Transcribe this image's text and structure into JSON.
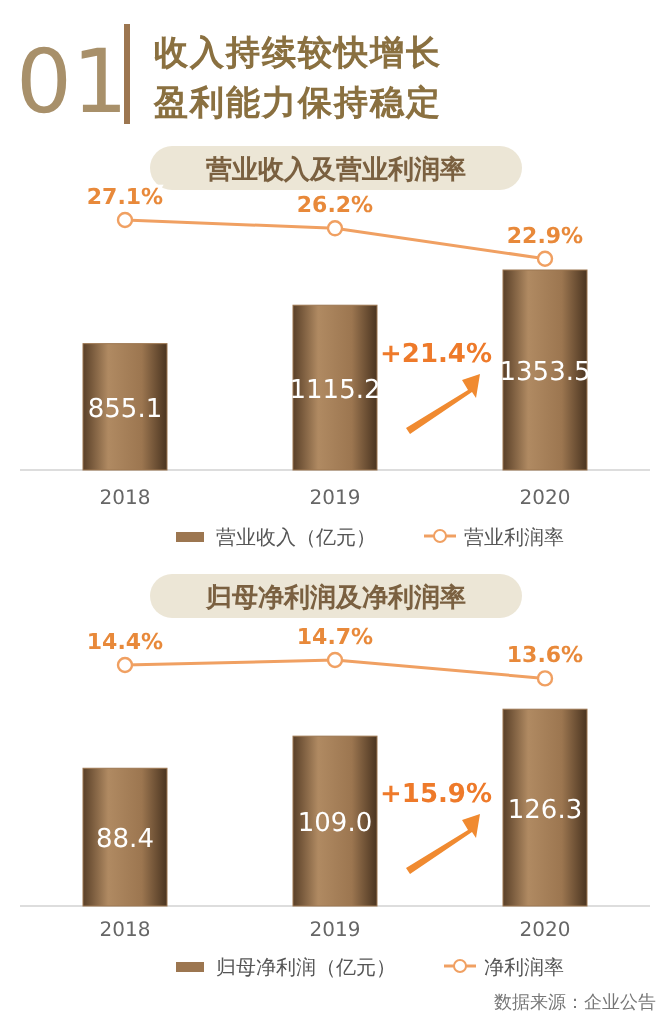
{
  "chart_data": [
    {
      "type": "bar",
      "categories": [
        "2018",
        "2019",
        "2020"
      ],
      "series": [
        {
          "name": "营业收入（亿元）",
          "color": "#9c7650",
          "values": [
            855.1,
            1115.2,
            1353.5
          ],
          "value_labels": [
            "855.1",
            "1115.2",
            "1353.5"
          ]
        }
      ],
      "tick_labels": "x",
      "legend": "bottom",
      "grid": false,
      "annotations": [
        "01",
        "收入持续较快增长",
        "盈利能力保持稳定",
        "+21.4%"
      ]
    },
    {
      "type": "line",
      "title": "营业收入及营业利润率",
      "categories": [
        null,
        null,
        null
      ],
      "series": [
        {
          "name": "营业利润率",
          "color": "#f0a062",
          "values": [
            27.1,
            26.2,
            22.9
          ],
          "value_labels": [
            "27.1%",
            "26.2%",
            "22.9%"
          ]
        }
      ],
      "tick_labels": false,
      "marker": "circle",
      "line_style": "solid",
      "legend": "bottom",
      "grid": false
    },
    {
      "type": "bar",
      "categories": [
        "2018",
        "2019",
        "2020"
      ],
      "series": [
        {
          "name": "归母净利润（亿元）",
          "color": "#9c7650",
          "values": [
            88.4,
            109.0,
            126.3
          ],
          "value_labels": [
            "88.4",
            "109.0",
            "126.3"
          ]
        }
      ],
      "tick_labels": "x",
      "legend": "bottom",
      "grid": false,
      "annotations": [
        "+15.9%",
        "数据来源：企业公告"
      ]
    },
    {
      "type": "line",
      "title": "归母净利润及净利润率",
      "categories": [
        null,
        null,
        null
      ],
      "series": [
        {
          "name": "净利润率",
          "color": "#f0a062",
          "values": [
            14.4,
            14.7,
            13.6
          ],
          "value_labels": [
            "14.4%",
            "14.7%",
            "13.6%"
          ]
        }
      ],
      "tick_labels": false,
      "marker": "circle",
      "line_style": "solid",
      "legend": "bottom",
      "grid": false
    }
  ]
}
